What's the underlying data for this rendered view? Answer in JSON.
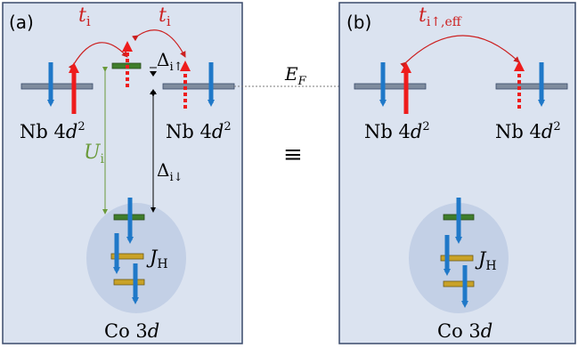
{
  "panel_a": {
    "tag": "(a)",
    "hop_left": "t",
    "hop_left_sub": "i",
    "hop_right": "t",
    "hop_right_sub": "i",
    "delta_up": "Δ",
    "delta_up_sub": "i↑",
    "delta_down": "Δ",
    "delta_down_sub": "i↓",
    "hubbard": "U",
    "hubbard_sub": "i",
    "nb_left": "Nb 4",
    "nb_left_d": "d",
    "nb_left_exp": "2",
    "nb_right": "Nb 4",
    "nb_right_d": "d",
    "nb_right_exp": "2",
    "hund": "J",
    "hund_sub": "H",
    "co": "Co 3",
    "co_d": "d"
  },
  "fermi": {
    "label": "E",
    "sub": "F"
  },
  "equiv": "≡",
  "panel_b": {
    "tag": "(b)",
    "hop": "t",
    "hop_sub": "i↑,eff",
    "nb_left": "Nb 4",
    "nb_left_d": "d",
    "nb_left_exp": "2",
    "nb_right": "Nb 4",
    "nb_right_d": "d",
    "nb_right_exp": "2",
    "hund": "J",
    "hund_sub": "H",
    "co": "Co 3",
    "co_d": "d"
  },
  "colors": {
    "panel_bg": "#dbe3f0",
    "panel_border": "#3a4a6b",
    "ellipse": "#c3d0e6",
    "spin_down": "#1f78c8",
    "spin_up": "#ee1c1c",
    "hop": "#cc1f1f",
    "nb_level": "#7f8c9e",
    "green_level": "#3f7d2b",
    "gold_level": "#c9a227",
    "u_line": "#6a9a3a"
  }
}
